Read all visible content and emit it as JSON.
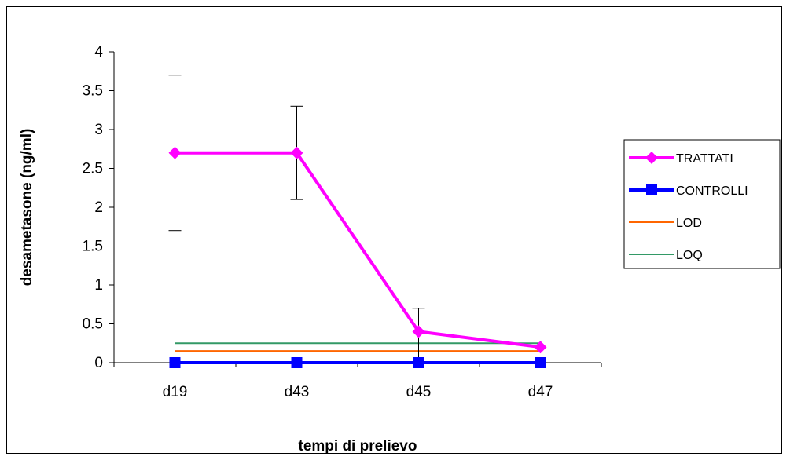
{
  "chart_data": {
    "type": "line",
    "xlabel": "tempi di prelievo",
    "ylabel": "desametasone (ng/ml)",
    "categories": [
      "d19",
      "d43",
      "d45",
      "d47"
    ],
    "ylim": [
      0,
      4
    ],
    "yticks": [
      "0",
      "0.5",
      "1",
      "1.5",
      "2",
      "2.5",
      "3",
      "3.5",
      "4"
    ],
    "ytick_values": [
      0,
      0.5,
      1,
      1.5,
      2,
      2.5,
      3,
      3.5,
      4
    ],
    "grid": false,
    "legend_position": "right",
    "series": [
      {
        "name": "TRATTATI",
        "values": [
          2.7,
          2.7,
          0.4,
          0.2
        ],
        "error_low": [
          1.7,
          2.1,
          0.0,
          null
        ],
        "error_high": [
          3.7,
          3.3,
          0.7,
          null
        ],
        "color": "#ff00ff",
        "marker": "diamond"
      },
      {
        "name": "CONTROLLI",
        "values": [
          0,
          0,
          0,
          0
        ],
        "color": "#0000ff",
        "marker": "square"
      },
      {
        "name": "LOD",
        "values": [
          0.15,
          0.15,
          0.15,
          0.15
        ],
        "color": "#ff6600",
        "marker": "none"
      },
      {
        "name": "LOQ",
        "values": [
          0.25,
          0.25,
          0.25,
          0.25
        ],
        "color": "#339966",
        "marker": "none"
      }
    ]
  }
}
